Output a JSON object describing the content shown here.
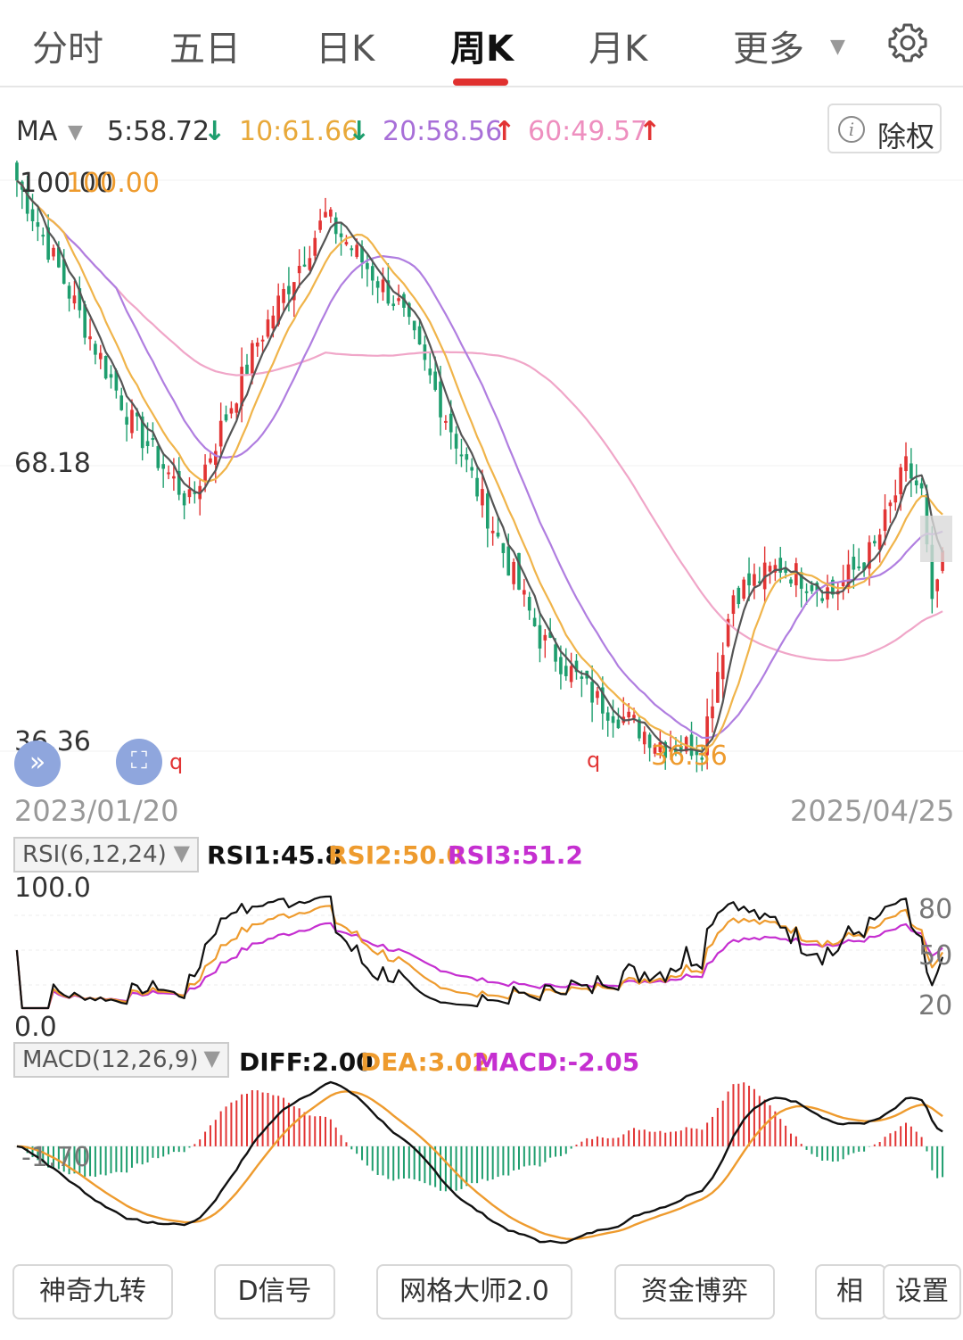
{
  "tabs": [
    {
      "label": "分时"
    },
    {
      "label": "五日"
    },
    {
      "label": "日K"
    },
    {
      "label": "周K"
    },
    {
      "label": "月K"
    },
    {
      "label": "更多"
    }
  ],
  "active_tab": "周K",
  "ma": {
    "label": "MA",
    "ma5": "5:58.72",
    "ma10": "10:61.66",
    "ma20": "20:58.56",
    "ma60": "60:49.57",
    "down_arrow": "↓",
    "up_arrow": "↑"
  },
  "adjust_button": "除权",
  "price_axis": {
    "top": "100.00",
    "mid": "68.18",
    "bottom": "36.36"
  },
  "annotations": {
    "high_mark": "100.00",
    "low_mark": "36.36",
    "q_mark": "q"
  },
  "dates": {
    "start": "2023/01/20",
    "end": "2025/04/25"
  },
  "rsi": {
    "selector": "RSI(6,12,24)",
    "rsi1": "RSI1:45.8",
    "rsi2": "RSI2:50.0",
    "rsi3": "RSI3:51.2",
    "top": "100.0",
    "bottom": "0.0",
    "right_ticks": [
      "80",
      "50",
      "20"
    ]
  },
  "macd": {
    "selector": "MACD(12,26,9)",
    "diff": "DIFF:2.00",
    "dea": "DEA:3.02",
    "macd": "MACD:-2.05",
    "left_tick": "-1.70"
  },
  "bottom_buttons": [
    "神奇九转",
    "D信号",
    "网格大师2.0",
    "资金博弈",
    "相",
    "设置"
  ],
  "colors": {
    "up": "#e23434",
    "down": "#1e9e6e",
    "ma5": "#555555",
    "ma10": "#f0b44a",
    "ma20": "#b07ee0",
    "ma60": "#f0a6c8",
    "rsi1": "#111111",
    "rsi2": "#ee9b2e",
    "rsi3": "#c52fd0",
    "diff": "#111111",
    "dea": "#ee9b2e",
    "macd_pos": "#e23434",
    "macd_neg": "#1e9e6e"
  },
  "chart_data": [
    {
      "type": "candlestick",
      "title": "周K",
      "ylim": [
        36.36,
        100.0
      ],
      "y_ticks": [
        100.0,
        68.18,
        36.36
      ],
      "x_range": [
        "2023/01/20",
        "2025/04/25"
      ],
      "anchors": [
        {
          "i": 0,
          "c": 100
        },
        {
          "i": 12,
          "c": 85
        },
        {
          "i": 22,
          "c": 73
        },
        {
          "i": 33,
          "c": 64
        },
        {
          "i": 46,
          "c": 82
        },
        {
          "i": 59,
          "c": 96
        },
        {
          "i": 73,
          "c": 86
        },
        {
          "i": 84,
          "c": 71
        },
        {
          "i": 100,
          "c": 49
        },
        {
          "i": 111,
          "c": 42
        },
        {
          "i": 124,
          "c": 37
        },
        {
          "i": 131,
          "c": 37
        },
        {
          "i": 137,
          "c": 54
        },
        {
          "i": 146,
          "c": 57
        },
        {
          "i": 156,
          "c": 54
        },
        {
          "i": 164,
          "c": 59
        },
        {
          "i": 170,
          "c": 68
        },
        {
          "i": 173,
          "c": 65
        },
        {
          "i": 175,
          "c": 52
        },
        {
          "i": 177,
          "c": 58.72
        }
      ],
      "candle_count": 178,
      "ma_last": {
        "MA5": 58.72,
        "MA10": 61.66,
        "MA20": 58.56,
        "MA60": 49.57
      }
    },
    {
      "type": "line",
      "title": "RSI(6,12,24)",
      "ylim": [
        0,
        100
      ],
      "right_ticks": [
        80,
        50,
        20
      ],
      "series": [
        {
          "name": "RSI1",
          "last": 45.8
        },
        {
          "name": "RSI2",
          "last": 50.0
        },
        {
          "name": "RSI3",
          "last": 51.2
        }
      ]
    },
    {
      "type": "bar",
      "title": "MACD(12,26,9)",
      "series": [
        {
          "name": "DIFF",
          "last": 2.0
        },
        {
          "name": "DEA",
          "last": 3.02
        },
        {
          "name": "MACD",
          "last": -2.05
        }
      ]
    }
  ]
}
